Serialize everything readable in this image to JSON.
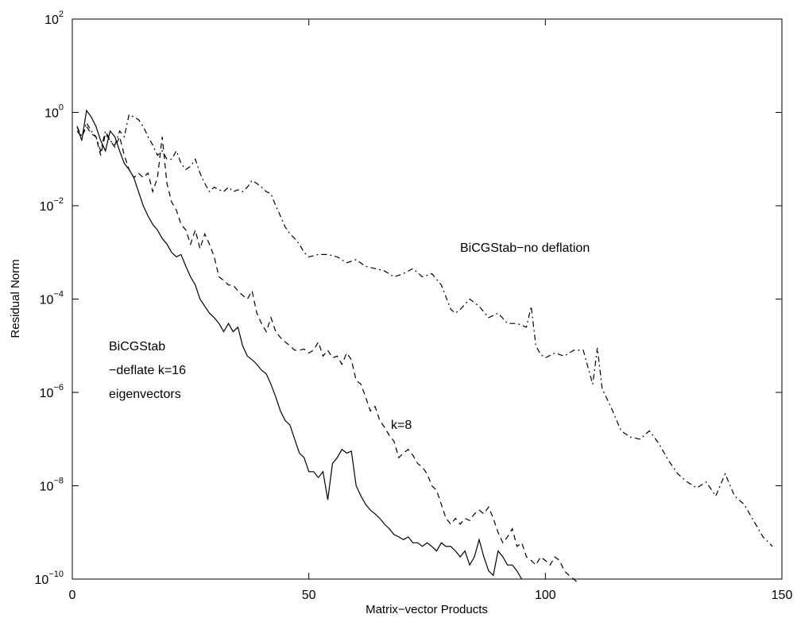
{
  "chart_data": {
    "type": "line",
    "title": "",
    "xlabel": "Matrix−vector Products",
    "ylabel": "Residual Norm",
    "xlim": [
      0,
      150
    ],
    "ylim": [
      1e-10,
      100
    ],
    "yscale": "log",
    "grid": false,
    "x_ticks": [
      "0",
      "50",
      "100",
      "150"
    ],
    "y_ticks": [
      {
        "base": "10",
        "exp": "2"
      },
      {
        "base": "10",
        "exp": "0"
      },
      {
        "base": "10",
        "exp": "−2"
      },
      {
        "base": "10",
        "exp": "−4"
      },
      {
        "base": "10",
        "exp": "−6"
      },
      {
        "base": "10",
        "exp": "−8"
      },
      {
        "base": "10",
        "exp": "−10"
      }
    ],
    "annotations": [
      "BiCGStab−no deflation",
      "k=8",
      "BiCGStab",
      "−deflate k=16",
      "eigenvectors"
    ],
    "series": [
      {
        "style": "dashdot",
        "color": "#000000",
        "x": [
          1,
          2,
          3,
          4,
          5,
          6,
          7,
          8,
          9,
          10,
          11,
          12,
          13,
          14,
          15,
          16,
          17,
          18,
          19,
          20,
          21,
          22,
          23,
          24,
          25,
          26,
          27,
          28,
          29,
          30,
          31,
          32,
          33,
          34,
          35,
          36,
          37,
          38,
          39,
          40,
          41,
          42,
          43,
          44,
          45,
          46,
          47,
          48,
          49,
          50,
          52,
          54,
          56,
          58,
          60,
          62,
          64,
          66,
          68,
          70,
          72,
          74,
          76,
          78,
          80,
          81,
          82,
          84,
          86,
          88,
          90,
          92,
          94,
          96,
          97,
          98,
          99,
          100,
          102,
          104,
          106,
          108,
          110,
          111,
          112,
          114,
          116,
          118,
          120,
          122,
          124,
          126,
          128,
          130,
          132,
          134,
          136,
          138,
          140,
          142,
          144,
          146,
          148
        ],
        "y": [
          0.5,
          0.3,
          0.6,
          0.4,
          0.3,
          0.15,
          0.4,
          0.25,
          0.2,
          0.4,
          0.3,
          0.9,
          0.8,
          0.7,
          0.5,
          0.3,
          0.2,
          0.12,
          0.15,
          0.1,
          0.1,
          0.15,
          0.08,
          0.06,
          0.07,
          0.1,
          0.05,
          0.03,
          0.02,
          0.025,
          0.022,
          0.02,
          0.025,
          0.02,
          0.022,
          0.02,
          0.025,
          0.035,
          0.03,
          0.025,
          0.02,
          0.018,
          0.01,
          0.006,
          0.0035,
          0.0025,
          0.002,
          0.0015,
          0.001,
          0.0008,
          0.0009,
          0.0009,
          0.0008,
          0.0006,
          0.0007,
          0.0005,
          0.00045,
          0.0004,
          0.0003,
          0.00035,
          0.00045,
          0.0003,
          0.00035,
          0.0002,
          6e-05,
          5e-05,
          6e-05,
          0.0001,
          7e-05,
          4e-05,
          5e-05,
          3e-05,
          3e-05,
          2.5e-05,
          7e-05,
          1e-05,
          6.5e-06,
          5.5e-06,
          7e-06,
          6e-06,
          8e-06,
          8e-06,
          1.5e-06,
          9e-06,
          1.2e-06,
          4.5e-07,
          1.5e-07,
          1.1e-07,
          1e-07,
          1.5e-07,
          8e-08,
          3.5e-08,
          1.8e-08,
          1.2e-08,
          9e-09,
          1.2e-08,
          6e-09,
          1.8e-08,
          6e-09,
          4e-09,
          1.8e-09,
          8e-10,
          5e-10
        ]
      },
      {
        "style": "dashed",
        "color": "#000000",
        "x": [
          1,
          2,
          3,
          4,
          5,
          6,
          7,
          8,
          9,
          10,
          11,
          12,
          13,
          14,
          15,
          16,
          17,
          18,
          19,
          20,
          21,
          22,
          23,
          24,
          25,
          26,
          27,
          28,
          29,
          30,
          31,
          32,
          33,
          34,
          35,
          36,
          37,
          38,
          39,
          40,
          41,
          42,
          43,
          44,
          45,
          46,
          47,
          48,
          49,
          50,
          51,
          52,
          53,
          54,
          55,
          56,
          57,
          58,
          59,
          60,
          61,
          62,
          63,
          64,
          65,
          66,
          67,
          68,
          69,
          70,
          71,
          72,
          73,
          74,
          75,
          76,
          77,
          78,
          79,
          80,
          81,
          82,
          83,
          84,
          85,
          86,
          87,
          88,
          89,
          90,
          91,
          92,
          93,
          94,
          95,
          96,
          97,
          98,
          99,
          100,
          101,
          102,
          103,
          104,
          105,
          106,
          107
        ],
        "y": [
          0.4,
          0.3,
          0.5,
          0.35,
          0.3,
          0.12,
          0.35,
          0.25,
          0.18,
          0.3,
          0.12,
          0.06,
          0.04,
          0.05,
          0.04,
          0.05,
          0.02,
          0.04,
          0.3,
          0.03,
          0.012,
          0.008,
          0.004,
          0.003,
          0.0015,
          0.003,
          0.0012,
          0.0025,
          0.0015,
          0.0008,
          0.0003,
          0.00025,
          0.0002,
          0.0002,
          0.00015,
          0.00012,
          0.0001,
          0.00015,
          5e-05,
          3e-05,
          2e-05,
          4e-05,
          2e-05,
          1.5e-05,
          1.2e-05,
          1e-05,
          8e-06,
          8e-06,
          8.5e-06,
          7e-06,
          8e-06,
          1.2e-05,
          6e-06,
          8e-06,
          5.5e-06,
          6e-06,
          4e-06,
          7e-06,
          5e-06,
          1.8e-06,
          1.5e-06,
          8e-07,
          4e-07,
          5e-07,
          2.5e-07,
          1.8e-07,
          1.2e-07,
          9e-08,
          4e-08,
          5e-08,
          6e-08,
          4.5e-08,
          3e-08,
          2.5e-08,
          1.8e-08,
          1e-08,
          8e-09,
          4e-09,
          2e-09,
          1.5e-09,
          2e-09,
          1.5e-09,
          2e-09,
          1.8e-09,
          2.5e-09,
          3e-09,
          2.5e-09,
          3.5e-09,
          2e-09,
          1e-09,
          6e-10,
          8e-10,
          1.2e-09,
          5e-10,
          6e-10,
          3e-10,
          2.5e-10,
          2e-10,
          3e-10,
          2.5e-10,
          2e-10,
          3e-10,
          2.5e-10,
          1.5e-10,
          1.2e-10,
          1e-10,
          8e-11
        ]
      },
      {
        "style": "solid",
        "color": "#000000",
        "x": [
          1,
          2,
          3,
          4,
          5,
          6,
          7,
          8,
          9,
          10,
          11,
          12,
          13,
          14,
          15,
          16,
          17,
          18,
          19,
          20,
          21,
          22,
          23,
          24,
          25,
          26,
          27,
          28,
          29,
          30,
          31,
          32,
          33,
          34,
          35,
          36,
          37,
          38,
          39,
          40,
          41,
          42,
          43,
          44,
          45,
          46,
          47,
          48,
          49,
          50,
          51,
          52,
          53,
          54,
          55,
          56,
          57,
          58,
          59,
          60,
          61,
          62,
          63,
          64,
          65,
          66,
          67,
          68,
          69,
          70,
          71,
          72,
          73,
          74,
          75,
          76,
          77,
          78,
          79,
          80,
          81,
          82,
          83,
          84,
          85,
          86,
          87,
          88,
          89,
          90,
          91,
          92,
          93,
          94,
          95
        ],
        "y": [
          0.5,
          0.25,
          1.1,
          0.8,
          0.5,
          0.25,
          0.15,
          0.4,
          0.3,
          0.15,
          0.08,
          0.06,
          0.04,
          0.02,
          0.01,
          0.006,
          0.004,
          0.003,
          0.002,
          0.0015,
          0.001,
          0.0008,
          0.0009,
          0.0005,
          0.0003,
          0.0002,
          0.0001,
          7e-05,
          5e-05,
          4e-05,
          3e-05,
          2e-05,
          3e-05,
          2e-05,
          2.5e-05,
          1e-05,
          6e-06,
          5e-06,
          4e-06,
          3e-06,
          2.5e-06,
          1.5e-06,
          8e-07,
          4e-07,
          2.5e-07,
          2e-07,
          1e-07,
          5e-08,
          4e-08,
          2e-08,
          2e-08,
          1.5e-08,
          2e-08,
          5e-09,
          3e-08,
          4e-08,
          6e-08,
          5e-08,
          5.5e-08,
          1e-08,
          6e-09,
          4e-09,
          3e-09,
          2.5e-09,
          2e-09,
          1.5e-09,
          1.2e-09,
          9e-10,
          8e-10,
          7e-10,
          8e-10,
          6e-10,
          6e-10,
          5e-10,
          6e-10,
          5e-10,
          4e-10,
          6e-10,
          5e-10,
          5e-10,
          4e-10,
          3e-10,
          4e-10,
          2e-10,
          3e-10,
          7e-10,
          3e-10,
          1.5e-10,
          1.2e-10,
          4e-10,
          3e-10,
          2e-10,
          2e-10,
          1.5e-10,
          1e-10
        ]
      }
    ]
  }
}
